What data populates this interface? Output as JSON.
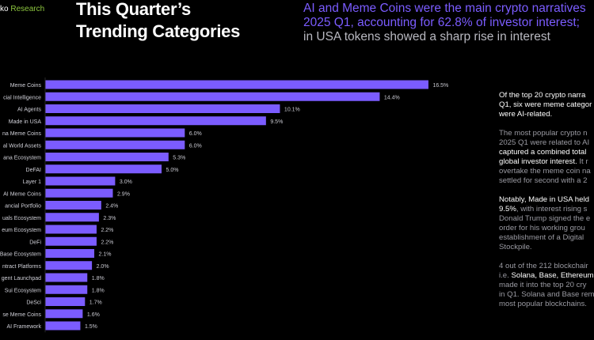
{
  "header": {
    "brand_prefix": "ko",
    "brand_suffix": "Research",
    "title_line1": "This Quarter’s",
    "title_line2": "Trending Categories",
    "subtitle_line1": "AI and Meme Coins were the main crypto narratives",
    "subtitle_line2": "2025 Q1, accounting for 62.8% of investor interest;",
    "subtitle_line3": "in USA tokens showed a sharp rise in interest"
  },
  "colors": {
    "bar": "#7b5cff",
    "accent": "#7b5cff",
    "brand": "#8dc63f"
  },
  "chart_data": {
    "type": "bar",
    "orientation": "horizontal",
    "categories": [
      "Meme Coins",
      "cial Intelligence",
      "AI Agents",
      "Made in USA",
      "na Meme Coins",
      "al World Assets",
      "ana Ecosystem",
      "DeFAI",
      "Layer 1",
      "AI Meme Coins",
      "ancial Portfolio",
      "uals Ecosystem",
      "eum Ecosystem",
      "DeFi",
      "Base Ecosystem",
      "ntract Platforms",
      "gent Launchpad",
      "Sui Ecosystem",
      "DeSci",
      "se Meme Coins",
      "AI Framework"
    ],
    "values": [
      16.5,
      14.4,
      10.1,
      9.5,
      6.0,
      6.0,
      5.3,
      5.0,
      3.0,
      2.9,
      2.4,
      2.3,
      2.2,
      2.2,
      2.1,
      2.0,
      1.8,
      1.8,
      1.7,
      1.6,
      1.5
    ],
    "value_labels": [
      "16.5%",
      "14.4%",
      "10.1%",
      "9.5%",
      "6.0%",
      "6.0%",
      "5.3%",
      "5.0%",
      "3.0%",
      "2.9%",
      "2.4%",
      "2.3%",
      "2.2%",
      "2.2%",
      "2.1%",
      "2.0%",
      "1.8%",
      "1.8%",
      "1.7%",
      "1.6%",
      "1.5%"
    ],
    "unit": "%",
    "xlim": [
      0,
      17
    ]
  },
  "notes": [
    [
      [
        [
          "w",
          "Of the top 20 crypto narra"
        ]
      ],
      [
        [
          "w",
          "Q1, six were meme categor"
        ]
      ],
      [
        [
          "w",
          "were AI-related."
        ]
      ]
    ],
    [
      [
        [
          "gr",
          "The most popular crypto n"
        ]
      ],
      [
        [
          "gr",
          "2025 Q1 were related to AI"
        ]
      ],
      [
        [
          "w",
          "captured a combined total"
        ]
      ],
      [
        [
          "w",
          "global investor interest."
        ],
        [
          "gr",
          " It r"
        ]
      ],
      [
        [
          "gr",
          "overtake the meme coin na"
        ]
      ],
      [
        [
          "gr",
          "settled for second with a 2"
        ]
      ]
    ],
    [
      [
        [
          "w",
          "Notably, Made in USA held"
        ]
      ],
      [
        [
          "w",
          "9.5%"
        ],
        [
          "gr",
          ", with interest rising s"
        ]
      ],
      [
        [
          "gr",
          "Donald Trump signed the e"
        ]
      ],
      [
        [
          "gr",
          "order for his working grou"
        ]
      ],
      [
        [
          "gr",
          "establishment of a Digital "
        ]
      ],
      [
        [
          "gr",
          "Stockpile."
        ]
      ]
    ],
    [
      [
        [
          "gr",
          "4 out of the 212 blockchair"
        ]
      ],
      [
        [
          "gr",
          "i.e. "
        ],
        [
          "w",
          "Solana, Base, Ethereum"
        ]
      ],
      [
        [
          "gr",
          "made it into the top 20 cry"
        ]
      ],
      [
        [
          "gr",
          "in Q1. Solana and Base rem"
        ]
      ],
      [
        [
          "gr",
          "most popular blockchains."
        ]
      ]
    ]
  ]
}
